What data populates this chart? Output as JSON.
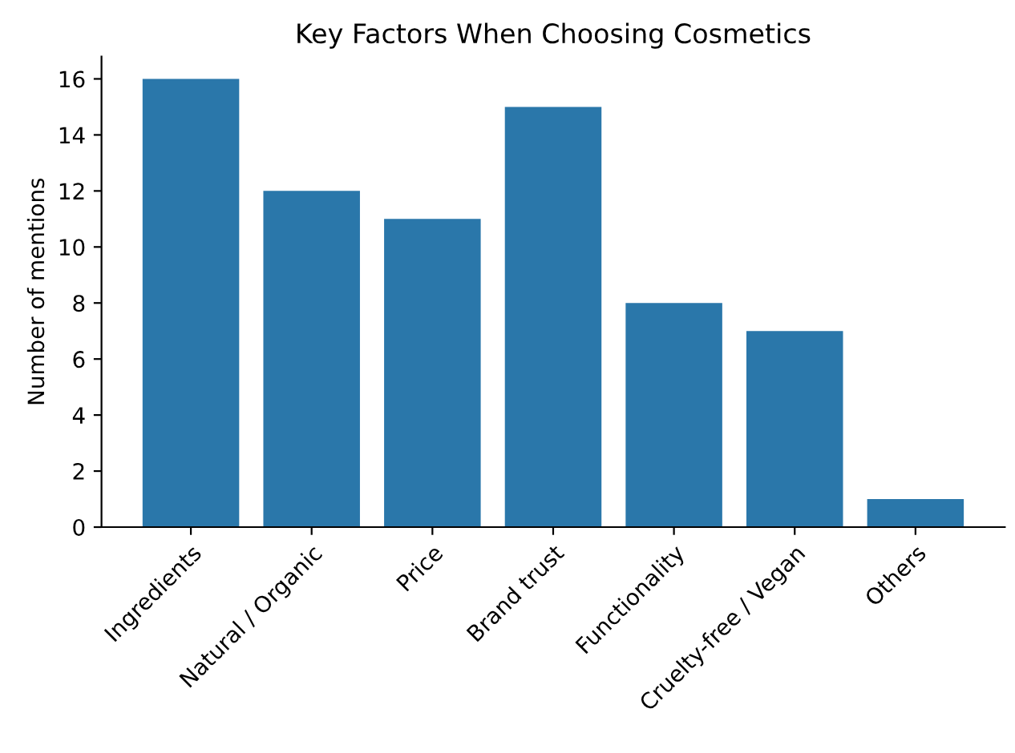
{
  "chart_data": {
    "type": "bar",
    "title": "Key Factors When Choosing Cosmetics",
    "ylabel": "Number of mentions",
    "categories": [
      "Ingredients",
      "Natural / Organic",
      "Price",
      "Brand trust",
      "Functionality",
      "Cruelty-free / Vegan",
      "Others"
    ],
    "values": [
      16,
      12,
      11,
      15,
      8,
      7,
      1
    ],
    "color": "#2a77aa",
    "ylim": [
      0,
      16.8
    ],
    "yticks": [
      0,
      2,
      4,
      6,
      8,
      10,
      12,
      14,
      16
    ],
    "grid": false
  }
}
